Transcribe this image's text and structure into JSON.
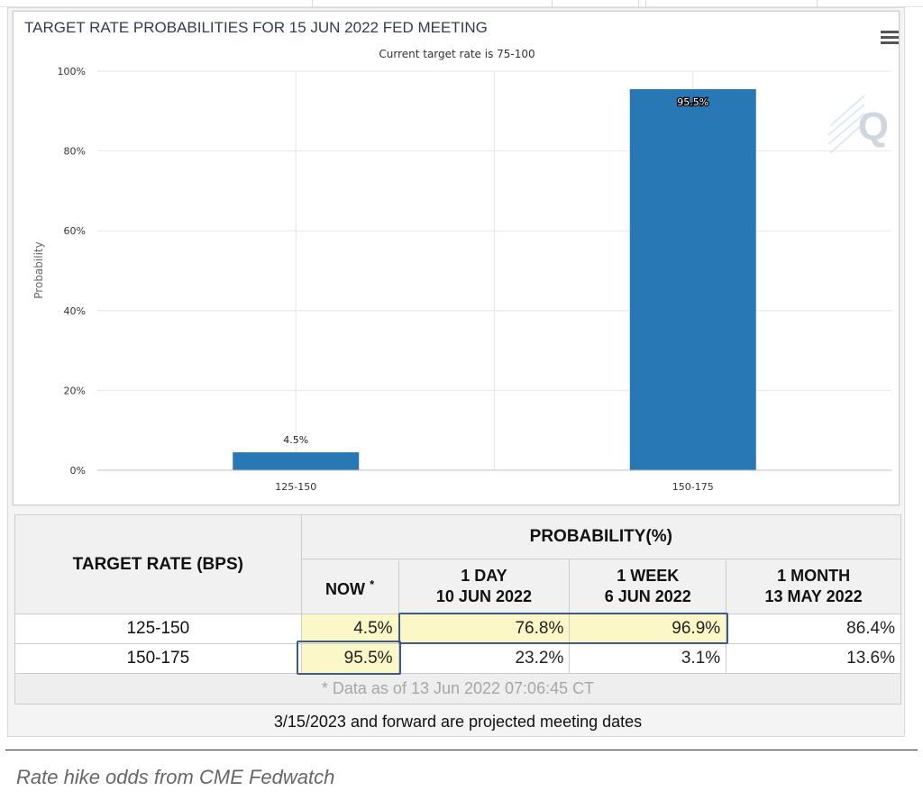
{
  "chart_data": {
    "type": "bar",
    "title": "TARGET RATE PROBABILITIES FOR 15 JUN 2022 FED MEETING",
    "subtitle": "Current target rate is 75-100",
    "xlabel": "",
    "ylabel": "Probability",
    "categories": [
      "125-150",
      "150-175"
    ],
    "values": [
      4.5,
      95.5
    ],
    "data_labels": [
      "4.5%",
      "95.5%"
    ],
    "ylim": [
      0,
      100
    ],
    "yticks": [
      "0%",
      "20%",
      "40%",
      "60%",
      "80%",
      "100%"
    ],
    "ytick_values": [
      0,
      20,
      40,
      60,
      80,
      100
    ],
    "grid": true,
    "bar_color": "#2878b5",
    "watermark": "Q"
  },
  "table": {
    "col_rate_header": "TARGET RATE (BPS)",
    "col_prob_header": "PROBABILITY(%)",
    "sub_headers": [
      {
        "line1": "NOW",
        "line2": "",
        "mark": "*"
      },
      {
        "line1": "1 DAY",
        "line2": "10 JUN 2022",
        "mark": ""
      },
      {
        "line1": "1 WEEK",
        "line2": "6 JUN 2022",
        "mark": ""
      },
      {
        "line1": "1 MONTH",
        "line2": "13 MAY 2022",
        "mark": ""
      }
    ],
    "rows": [
      {
        "rate": "125-150",
        "values": [
          "4.5%",
          "76.8%",
          "96.9%",
          "86.4%"
        ]
      },
      {
        "rate": "150-175",
        "values": [
          "95.5%",
          "23.2%",
          "3.1%",
          "13.6%"
        ]
      }
    ],
    "data_note": "* Data as of 13 Jun 2022 07:06:45 CT"
  },
  "footer_note": "3/15/2023 and forward are projected meeting dates",
  "caption": "Rate hike odds from CME Fedwatch",
  "colors": {
    "accent": "#2878b5",
    "highlight_yellow": "#fbf7c6",
    "highlight_border": "#3f5a86"
  },
  "icons": {
    "menu": "hamburger-menu-icon"
  }
}
